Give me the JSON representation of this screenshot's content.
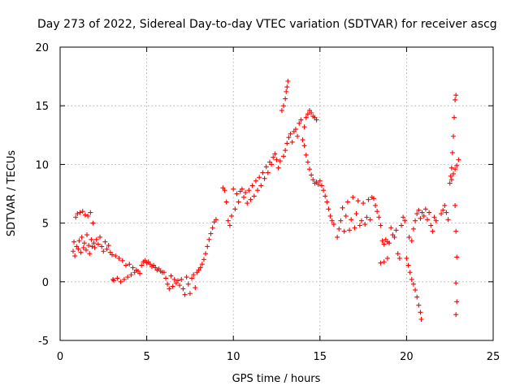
{
  "chart_data": {
    "type": "scatter",
    "title": "Day 273 of 2022, Sidereal Day-to-day VTEC variation (SDTVAR) for receiver ascg",
    "xlabel": "GPS time / hours",
    "ylabel": "SDTVAR / TECUs",
    "xlim": [
      0,
      25
    ],
    "ylim": [
      -5,
      20
    ],
    "xticks": [
      0,
      5,
      10,
      15,
      20,
      25
    ],
    "yticks": [
      -5,
      0,
      5,
      10,
      15,
      20
    ],
    "grid": true,
    "marker": "+",
    "color": "#ff0000",
    "series": [
      {
        "name": "SDTVAR",
        "points": [
          [
            0.75,
            2.6
          ],
          [
            0.8,
            3.4
          ],
          [
            0.85,
            2.2
          ],
          [
            0.9,
            5.5
          ],
          [
            0.95,
            3.0
          ],
          [
            1.0,
            5.8
          ],
          [
            1.05,
            2.8
          ],
          [
            1.1,
            3.5
          ],
          [
            1.15,
            5.9
          ],
          [
            1.2,
            2.5
          ],
          [
            1.25,
            3.8
          ],
          [
            1.3,
            6.0
          ],
          [
            1.35,
            2.9
          ],
          [
            1.4,
            3.3
          ],
          [
            1.45,
            5.7
          ],
          [
            1.5,
            2.7
          ],
          [
            1.55,
            4.0
          ],
          [
            1.6,
            5.6
          ],
          [
            1.65,
            3.1
          ],
          [
            1.7,
            2.4
          ],
          [
            1.75,
            5.9
          ],
          [
            1.8,
            3.6
          ],
          [
            1.85,
            3.0
          ],
          [
            1.9,
            5.0
          ],
          [
            1.95,
            3.3
          ],
          [
            2.0,
            2.9
          ],
          [
            2.1,
            3.6
          ],
          [
            2.2,
            3.2
          ],
          [
            2.3,
            3.8
          ],
          [
            2.4,
            3.0
          ],
          [
            2.5,
            2.6
          ],
          [
            2.6,
            3.4
          ],
          [
            2.7,
            2.8
          ],
          [
            2.8,
            3.1
          ],
          [
            2.9,
            2.5
          ],
          [
            3.0,
            2.3
          ],
          [
            3.05,
            0.2
          ],
          [
            3.1,
            0.1
          ],
          [
            3.2,
            2.2
          ],
          [
            3.3,
            0.3
          ],
          [
            3.4,
            2.0
          ],
          [
            3.5,
            0.0
          ],
          [
            3.6,
            1.8
          ],
          [
            3.7,
            0.2
          ],
          [
            3.8,
            1.4
          ],
          [
            3.9,
            0.4
          ],
          [
            4.0,
            1.5
          ],
          [
            4.1,
            0.6
          ],
          [
            4.2,
            1.2
          ],
          [
            4.3,
            0.8
          ],
          [
            4.4,
            1.0
          ],
          [
            4.5,
            0.9
          ],
          [
            4.6,
            0.7
          ],
          [
            4.7,
            1.4
          ],
          [
            4.8,
            1.7
          ],
          [
            4.9,
            1.8
          ],
          [
            5.0,
            1.6
          ],
          [
            5.1,
            1.7
          ],
          [
            5.2,
            1.5
          ],
          [
            5.3,
            1.3
          ],
          [
            5.4,
            1.4
          ],
          [
            5.5,
            1.2
          ],
          [
            5.6,
            1.0
          ],
          [
            5.7,
            1.1
          ],
          [
            5.8,
            0.9
          ],
          [
            5.9,
            0.8
          ],
          [
            6.0,
            0.8
          ],
          [
            6.1,
            0.3
          ],
          [
            6.2,
            -0.2
          ],
          [
            6.3,
            -0.6
          ],
          [
            6.4,
            0.5
          ],
          [
            6.5,
            -0.4
          ],
          [
            6.6,
            0.2
          ],
          [
            6.7,
            -0.1
          ],
          [
            6.8,
            0.1
          ],
          [
            6.9,
            -0.3
          ],
          [
            7.0,
            0.2
          ],
          [
            7.1,
            -0.6
          ],
          [
            7.2,
            -1.1
          ],
          [
            7.3,
            0.4
          ],
          [
            7.4,
            -0.2
          ],
          [
            7.5,
            -1.0
          ],
          [
            7.6,
            0.3
          ],
          [
            7.7,
            0.6
          ],
          [
            7.8,
            -0.5
          ],
          [
            7.9,
            0.8
          ],
          [
            8.0,
            1.0
          ],
          [
            8.1,
            1.2
          ],
          [
            8.2,
            1.5
          ],
          [
            8.3,
            1.9
          ],
          [
            8.4,
            2.4
          ],
          [
            8.5,
            3.0
          ],
          [
            8.6,
            3.6
          ],
          [
            8.7,
            4.1
          ],
          [
            8.8,
            4.6
          ],
          [
            8.9,
            5.1
          ],
          [
            9.0,
            5.3
          ],
          [
            9.4,
            8.0
          ],
          [
            9.5,
            7.8
          ],
          [
            9.6,
            6.8
          ],
          [
            9.7,
            5.2
          ],
          [
            9.8,
            4.8
          ],
          [
            9.9,
            5.6
          ],
          [
            10.0,
            7.9
          ],
          [
            10.1,
            6.2
          ],
          [
            10.2,
            7.5
          ],
          [
            10.3,
            6.8
          ],
          [
            10.4,
            7.7
          ],
          [
            10.5,
            7.9
          ],
          [
            10.6,
            7.2
          ],
          [
            10.7,
            7.6
          ],
          [
            10.8,
            6.7
          ],
          [
            10.9,
            7.8
          ],
          [
            11.0,
            7.0
          ],
          [
            11.1,
            8.2
          ],
          [
            11.2,
            7.3
          ],
          [
            11.3,
            8.6
          ],
          [
            11.4,
            7.8
          ],
          [
            11.5,
            8.9
          ],
          [
            11.6,
            8.2
          ],
          [
            11.7,
            9.3
          ],
          [
            11.8,
            8.8
          ],
          [
            11.9,
            9.8
          ],
          [
            12.0,
            9.3
          ],
          [
            12.1,
            10.2
          ],
          [
            12.2,
            10.0
          ],
          [
            12.3,
            10.6
          ],
          [
            12.4,
            10.9
          ],
          [
            12.5,
            10.4
          ],
          [
            12.6,
            9.7
          ],
          [
            12.7,
            10.3
          ],
          [
            12.8,
            14.6
          ],
          [
            12.9,
            15.0
          ],
          [
            13.0,
            15.6
          ],
          [
            13.05,
            16.2
          ],
          [
            13.1,
            16.6
          ],
          [
            13.15,
            17.1
          ],
          [
            12.9,
            10.7
          ],
          [
            13.0,
            11.2
          ],
          [
            13.1,
            11.8
          ],
          [
            13.2,
            12.3
          ],
          [
            13.3,
            12.6
          ],
          [
            13.4,
            11.9
          ],
          [
            13.5,
            12.8
          ],
          [
            13.6,
            13.0
          ],
          [
            13.7,
            12.4
          ],
          [
            13.8,
            13.5
          ],
          [
            13.9,
            13.8
          ],
          [
            14.0,
            12.1
          ],
          [
            14.1,
            13.2
          ],
          [
            14.2,
            14.0
          ],
          [
            14.3,
            14.3
          ],
          [
            14.4,
            14.6
          ],
          [
            14.5,
            14.4
          ],
          [
            14.6,
            14.1
          ],
          [
            14.7,
            14.0
          ],
          [
            14.8,
            13.8
          ],
          [
            14.1,
            11.6
          ],
          [
            14.2,
            10.8
          ],
          [
            14.3,
            10.2
          ],
          [
            14.4,
            9.6
          ],
          [
            14.5,
            9.1
          ],
          [
            14.6,
            8.7
          ],
          [
            14.7,
            8.4
          ],
          [
            14.8,
            8.5
          ],
          [
            14.9,
            8.3
          ],
          [
            15.0,
            8.6
          ],
          [
            15.1,
            8.2
          ],
          [
            15.2,
            7.8
          ],
          [
            15.3,
            7.3
          ],
          [
            15.4,
            6.8
          ],
          [
            15.5,
            6.2
          ],
          [
            15.6,
            5.6
          ],
          [
            15.7,
            5.2
          ],
          [
            15.8,
            4.9
          ],
          [
            16.0,
            3.8
          ],
          [
            16.1,
            4.5
          ],
          [
            16.2,
            5.2
          ],
          [
            16.3,
            6.3
          ],
          [
            16.4,
            4.3
          ],
          [
            16.5,
            5.6
          ],
          [
            16.6,
            6.8
          ],
          [
            16.7,
            4.4
          ],
          [
            16.8,
            5.3
          ],
          [
            16.9,
            7.2
          ],
          [
            17.0,
            4.6
          ],
          [
            17.1,
            5.8
          ],
          [
            17.2,
            6.9
          ],
          [
            17.3,
            4.8
          ],
          [
            17.4,
            5.2
          ],
          [
            17.5,
            6.7
          ],
          [
            17.6,
            4.9
          ],
          [
            17.7,
            5.5
          ],
          [
            17.8,
            7.0
          ],
          [
            17.9,
            5.3
          ],
          [
            18.0,
            7.2
          ],
          [
            18.1,
            7.1
          ],
          [
            18.2,
            6.5
          ],
          [
            18.3,
            6.0
          ],
          [
            18.4,
            5.5
          ],
          [
            18.5,
            4.8
          ],
          [
            18.6,
            3.5
          ],
          [
            18.7,
            3.2
          ],
          [
            18.8,
            3.6
          ],
          [
            18.9,
            3.4
          ],
          [
            19.0,
            3.3
          ],
          [
            19.1,
            4.6
          ],
          [
            19.2,
            4.0
          ],
          [
            19.3,
            3.8
          ],
          [
            19.4,
            4.4
          ],
          [
            19.5,
            2.4
          ],
          [
            19.6,
            2.0
          ],
          [
            19.7,
            4.8
          ],
          [
            19.8,
            5.5
          ],
          [
            19.9,
            5.2
          ],
          [
            18.5,
            1.6
          ],
          [
            18.7,
            1.7
          ],
          [
            18.9,
            2.0
          ],
          [
            20.0,
            2.0
          ],
          [
            20.1,
            1.4
          ],
          [
            20.2,
            0.8
          ],
          [
            20.3,
            0.2
          ],
          [
            20.4,
            -0.2
          ],
          [
            20.5,
            -0.7
          ],
          [
            20.6,
            -1.3
          ],
          [
            20.7,
            -2.0
          ],
          [
            20.8,
            -2.6
          ],
          [
            20.85,
            -3.2
          ],
          [
            20.15,
            3.8
          ],
          [
            20.3,
            3.5
          ],
          [
            20.4,
            4.5
          ],
          [
            20.5,
            5.2
          ],
          [
            20.6,
            5.8
          ],
          [
            20.7,
            6.1
          ],
          [
            20.8,
            5.4
          ],
          [
            20.9,
            5.9
          ],
          [
            21.0,
            5.6
          ],
          [
            21.1,
            6.2
          ],
          [
            21.2,
            5.3
          ],
          [
            21.3,
            5.9
          ],
          [
            21.4,
            4.8
          ],
          [
            21.5,
            4.3
          ],
          [
            21.6,
            5.5
          ],
          [
            21.7,
            5.2
          ],
          [
            22.0,
            5.8
          ],
          [
            22.1,
            6.1
          ],
          [
            22.2,
            6.5
          ],
          [
            22.3,
            5.9
          ],
          [
            22.4,
            5.3
          ],
          [
            22.5,
            8.4
          ],
          [
            22.55,
            9.0
          ],
          [
            22.6,
            9.7
          ],
          [
            22.65,
            11.0
          ],
          [
            22.7,
            12.4
          ],
          [
            22.75,
            14.0
          ],
          [
            22.8,
            15.5
          ],
          [
            22.85,
            15.9
          ],
          [
            22.6,
            8.7
          ],
          [
            22.7,
            9.2
          ],
          [
            22.8,
            9.6
          ],
          [
            22.9,
            9.9
          ],
          [
            23.0,
            10.4
          ],
          [
            22.8,
            6.5
          ],
          [
            22.85,
            4.3
          ],
          [
            22.9,
            2.1
          ],
          [
            22.85,
            -0.1
          ],
          [
            22.9,
            -1.7
          ],
          [
            22.85,
            -2.8
          ]
        ]
      }
    ]
  }
}
